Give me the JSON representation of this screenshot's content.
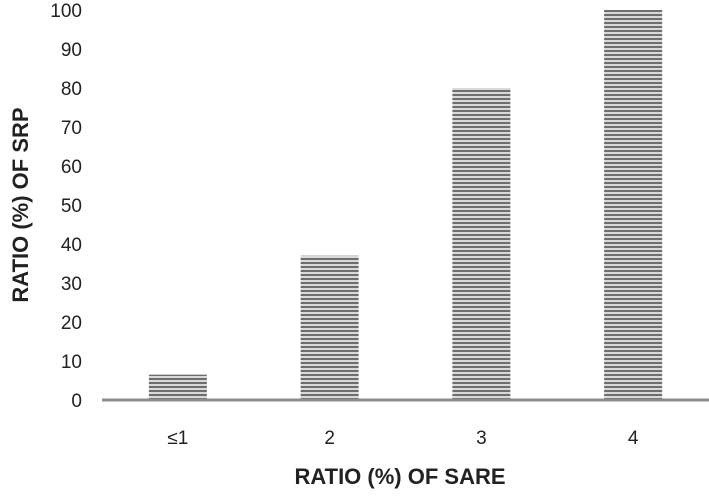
{
  "chart_data": {
    "type": "bar",
    "categories": [
      "≤1",
      "2",
      "3",
      "4"
    ],
    "values": [
      6.5,
      37,
      80,
      100
    ],
    "xlabel": "RATIO (%) OF SARE",
    "ylabel": "RATIO (%) OF SRP",
    "ylim": [
      0,
      100
    ],
    "yticks": [
      "0",
      "10",
      "20",
      "30",
      "40",
      "50",
      "60",
      "70",
      "80",
      "90",
      "100"
    ],
    "grid": false,
    "bar_fill": "horizontal-stripes",
    "colors": {
      "bar_light": "#d9d9d9",
      "bar_dark": "#6e6e6e",
      "axis": "#8c8c8c",
      "text": "#222222"
    }
  }
}
